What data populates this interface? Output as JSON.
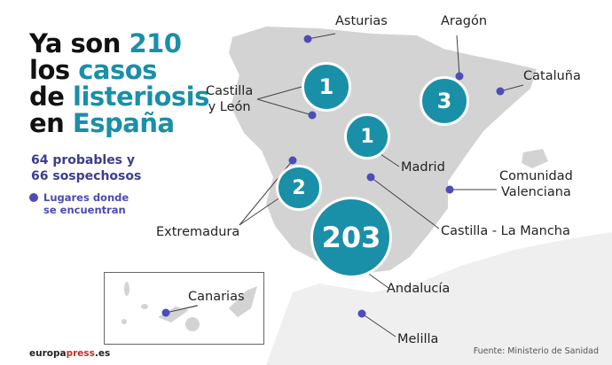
{
  "title": {
    "line1_a": "Ya son ",
    "line1_b": "210",
    "line2_a": "los ",
    "line2_b": "casos",
    "line3_a": "de ",
    "line3_b": "listeriosis",
    "line4_a": "en ",
    "line4_b": "España"
  },
  "subtitle": {
    "line1": "64 probables y",
    "line2": "66 sospechosos"
  },
  "legend": {
    "line1": "Lugares donde",
    "line2": "se encuentran"
  },
  "bubbles": {
    "castilla_leon": "1",
    "aragon": "3",
    "madrid": "1",
    "extremadura": "2",
    "andalucia": "203"
  },
  "labels": {
    "asturias": "Asturias",
    "aragon": "Aragón",
    "cataluna": "Cataluña",
    "castilla_leon_1": "Castilla",
    "castilla_leon_2": "y León",
    "madrid": "Madrid",
    "valenciana_1": "Comunidad",
    "valenciana_2": "Valenciana",
    "castilla_mancha": "Castilla - La Mancha",
    "extremadura": "Extremadura",
    "andalucia": "Andalucía",
    "melilla": "Melilla",
    "canarias": "Canarias"
  },
  "footer": {
    "brand_a": "europa",
    "brand_b": "press",
    "brand_c": ".es",
    "source": "Fuente: Ministerio de Sanidad"
  },
  "colors": {
    "accent": "#1a8fa8",
    "dot": "#4c4db8",
    "land": "#d3d3d3",
    "africa": "#efefef"
  }
}
